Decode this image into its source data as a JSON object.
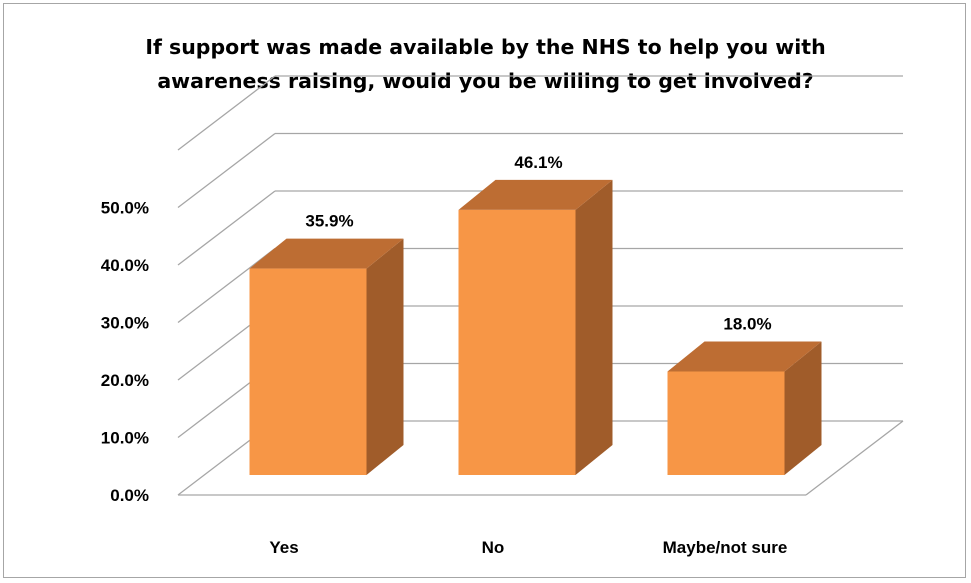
{
  "chart_data": {
    "type": "bar",
    "title": "If support was made available by the NHS to help you with awareness raising, would you be willing to get involved?",
    "title_lines": [
      "If support was made available by the NHS to help you with",
      "awareness raising, would you be willing to get involved?"
    ],
    "categories": [
      "Yes",
      "No",
      "Maybe/not sure"
    ],
    "values": [
      35.9,
      46.1,
      18.0
    ],
    "data_labels": [
      "35.9%",
      "46.1%",
      "18.0%"
    ],
    "y_ticks": [
      "0.0%",
      "10.0%",
      "20.0%",
      "30.0%",
      "40.0%",
      "50.0%"
    ],
    "ylim": [
      0,
      50
    ],
    "grid": true,
    "legend": "none",
    "xlabel": "",
    "ylabel": "",
    "colors": {
      "bar_front": "#f79646",
      "bar_side": "#a05c2a",
      "bar_top": "#bd6d33",
      "grid": "#a6a6a6"
    }
  }
}
